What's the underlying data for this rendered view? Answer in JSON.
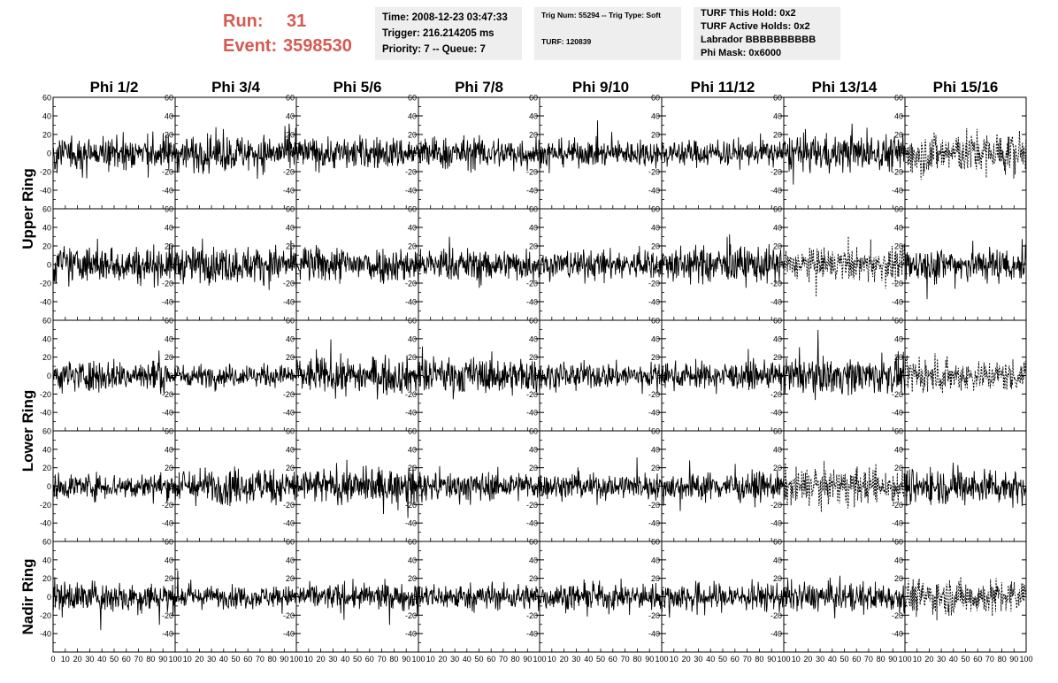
{
  "header": {
    "run_label": "Run:",
    "run_value": "31",
    "event_label": "Event:",
    "event_value": "3598530",
    "time": "Time: 2008-12-23 03:47:33",
    "trigger": "Trigger: 216.214205 ms",
    "priority": "Priority: 7 -- Queue: 7",
    "trig_num": "Trig Num: 55294 -- Trig Type: Soft",
    "turf": "TURF: 120839",
    "turf_this_hold": "TURF This Hold: 0x2",
    "turf_active_holds": "TURF Active Holds: 0x2",
    "labrador": "Labrador BBBBBBBBBB",
    "phi_mask": "Phi Mask: 0x6000"
  },
  "colors": {
    "run_text": "#d65a52",
    "info_bg": "#eeeeee",
    "trace": "#000000"
  },
  "chart_data": {
    "type": "line",
    "columns": [
      "Phi 1/2",
      "Phi 3/4",
      "Phi 5/6",
      "Phi 7/8",
      "Phi 9/10",
      "Phi 11/12",
      "Phi 13/14",
      "Phi 15/16"
    ],
    "rows": [
      "Upper Ring",
      "Lower Ring",
      "Nadir Ring"
    ],
    "ylim": [
      -60,
      60
    ],
    "yticks": [
      -40,
      -20,
      0,
      20,
      40,
      60
    ],
    "xlim": [
      0,
      100
    ],
    "xticks": [
      0,
      10,
      20,
      30,
      40,
      50,
      60,
      70,
      80,
      90,
      100
    ],
    "grid": false,
    "panels_rows": 5,
    "dashed_panels": [
      [
        0,
        7
      ],
      [
        1,
        6
      ],
      [
        2,
        7
      ],
      [
        3,
        6
      ],
      [
        4,
        7
      ]
    ],
    "trace_amplitude": [
      [
        25,
        25,
        22,
        22,
        18,
        18,
        25,
        30
      ],
      [
        25,
        25,
        25,
        22,
        20,
        25,
        22,
        25
      ],
      [
        22,
        15,
        25,
        25,
        18,
        18,
        25,
        22
      ],
      [
        18,
        25,
        25,
        20,
        18,
        20,
        25,
        25
      ],
      [
        22,
        15,
        18,
        18,
        18,
        20,
        20,
        25
      ]
    ],
    "samples_per_trace": 260
  }
}
